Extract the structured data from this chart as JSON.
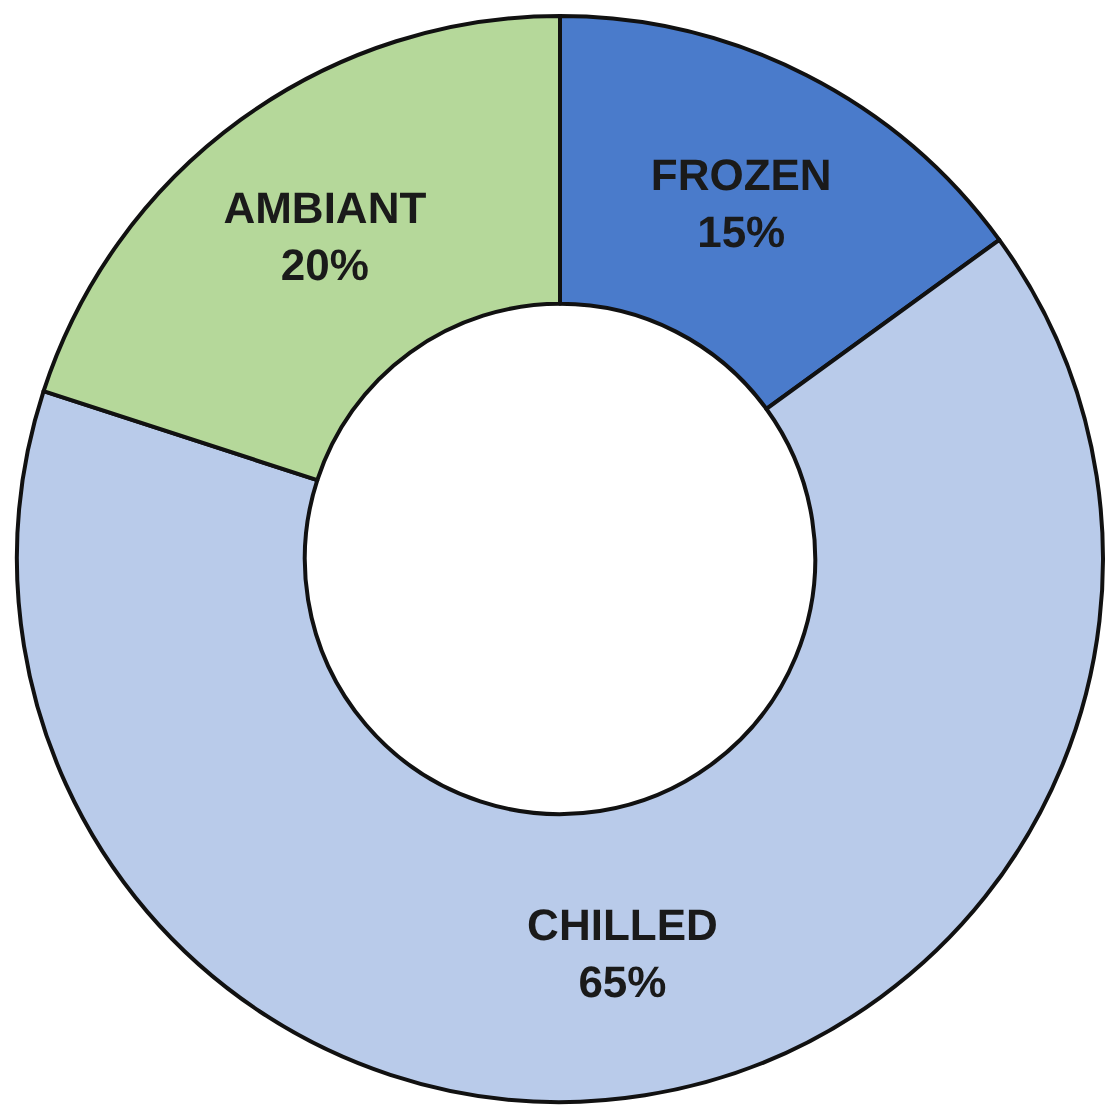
{
  "chart_data": {
    "type": "donut",
    "categories": [
      "FROZEN",
      "CHILLED",
      "AMBIANT"
    ],
    "values": [
      15,
      65,
      20
    ],
    "value_labels": [
      "15%",
      "65%",
      "20%"
    ],
    "colors": [
      "#4a7bcb",
      "#b9cbea",
      "#b5d89a"
    ]
  }
}
